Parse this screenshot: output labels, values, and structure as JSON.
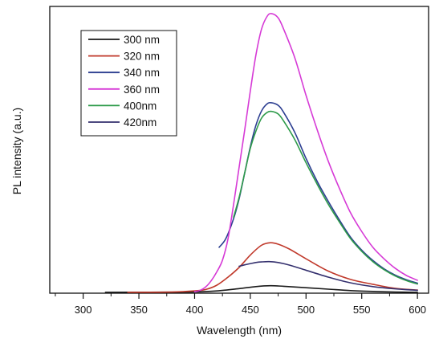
{
  "chart_data": {
    "type": "line",
    "xlabel": "Wavelength (nm)",
    "ylabel": "PL intensity (a.u.)",
    "xlim": [
      270,
      610
    ],
    "ylim": [
      0,
      100
    ],
    "xticks": [
      300,
      350,
      400,
      450,
      500,
      550,
      600
    ],
    "x_minor_ticks": [
      275,
      325,
      375,
      425,
      475,
      525,
      575
    ],
    "y_tick_labels": false,
    "grid": false,
    "legend_position": "top-left",
    "series": [
      {
        "name": "300 nm",
        "color": "#1a1a1a",
        "points": [
          [
            320,
            0.3
          ],
          [
            360,
            0.35
          ],
          [
            400,
            0.45
          ],
          [
            420,
            0.8
          ],
          [
            440,
            1.6
          ],
          [
            455,
            2.3
          ],
          [
            468,
            2.6
          ],
          [
            480,
            2.4
          ],
          [
            500,
            1.9
          ],
          [
            520,
            1.4
          ],
          [
            540,
            0.9
          ],
          [
            560,
            0.6
          ],
          [
            580,
            0.4
          ],
          [
            600,
            0.3
          ]
        ]
      },
      {
        "name": "320 nm",
        "color": "#c0392b",
        "points": [
          [
            340,
            0.3
          ],
          [
            380,
            0.4
          ],
          [
            400,
            0.8
          ],
          [
            410,
            1.3
          ],
          [
            420,
            2.8
          ],
          [
            430,
            5.6
          ],
          [
            440,
            9.0
          ],
          [
            450,
            13.3
          ],
          [
            460,
            16.7
          ],
          [
            468,
            17.6
          ],
          [
            475,
            17.1
          ],
          [
            485,
            15.4
          ],
          [
            500,
            12.0
          ],
          [
            520,
            7.7
          ],
          [
            540,
            4.8
          ],
          [
            560,
            3.1
          ],
          [
            580,
            1.7
          ],
          [
            600,
            1.1
          ]
        ]
      },
      {
        "name": "340 nm",
        "color": "#2c3e91",
        "points": [
          [
            422,
            16.0
          ],
          [
            428,
            19.0
          ],
          [
            435,
            26.0
          ],
          [
            440,
            33.0
          ],
          [
            445,
            42.0
          ],
          [
            450,
            51.0
          ],
          [
            455,
            58.5
          ],
          [
            460,
            63.5
          ],
          [
            465,
            66.0
          ],
          [
            469,
            66.4
          ],
          [
            475,
            65.5
          ],
          [
            480,
            63.0
          ],
          [
            490,
            56.0
          ],
          [
            500,
            47.0
          ],
          [
            510,
            39.0
          ],
          [
            520,
            32.0
          ],
          [
            530,
            25.5
          ],
          [
            540,
            19.5
          ],
          [
            550,
            15.0
          ],
          [
            560,
            11.4
          ],
          [
            570,
            8.5
          ],
          [
            580,
            6.3
          ],
          [
            590,
            4.7
          ],
          [
            600,
            3.5
          ]
        ]
      },
      {
        "name": "360 nm",
        "color": "#d63ad6",
        "points": [
          [
            400,
            0.5
          ],
          [
            405,
            1.0
          ],
          [
            410,
            2.2
          ],
          [
            415,
            4.4
          ],
          [
            420,
            7.5
          ],
          [
            425,
            11.5
          ],
          [
            430,
            19.0
          ],
          [
            435,
            31.0
          ],
          [
            440,
            44.0
          ],
          [
            445,
            57.0
          ],
          [
            450,
            70.5
          ],
          [
            455,
            83.0
          ],
          [
            460,
            92.0
          ],
          [
            465,
            96.5
          ],
          [
            469,
            97.5
          ],
          [
            475,
            96.0
          ],
          [
            480,
            92.0
          ],
          [
            490,
            82.0
          ],
          [
            500,
            69.0
          ],
          [
            510,
            57.0
          ],
          [
            520,
            46.0
          ],
          [
            530,
            36.5
          ],
          [
            540,
            28.0
          ],
          [
            550,
            21.5
          ],
          [
            560,
            16.0
          ],
          [
            570,
            12.0
          ],
          [
            580,
            8.7
          ],
          [
            590,
            6.2
          ],
          [
            600,
            4.5
          ]
        ]
      },
      {
        "name": "400nm",
        "color": "#2e9b4a",
        "points": [
          [
            435,
            26.5
          ],
          [
            440,
            33.5
          ],
          [
            445,
            42.0
          ],
          [
            450,
            50.5
          ],
          [
            455,
            56.5
          ],
          [
            460,
            61.0
          ],
          [
            465,
            63.0
          ],
          [
            469,
            63.4
          ],
          [
            475,
            62.5
          ],
          [
            480,
            60.0
          ],
          [
            490,
            53.5
          ],
          [
            500,
            45.5
          ],
          [
            510,
            38.0
          ],
          [
            520,
            31.0
          ],
          [
            530,
            24.8
          ],
          [
            540,
            19.0
          ],
          [
            550,
            14.6
          ],
          [
            560,
            11.0
          ],
          [
            570,
            8.2
          ],
          [
            580,
            6.0
          ],
          [
            590,
            4.4
          ],
          [
            600,
            3.2
          ]
        ]
      },
      {
        "name": "420nm",
        "color": "#34306e",
        "points": [
          [
            440,
            9.4
          ],
          [
            445,
            9.9
          ],
          [
            450,
            10.3
          ],
          [
            455,
            10.7
          ],
          [
            460,
            10.9
          ],
          [
            467,
            11.0
          ],
          [
            475,
            10.7
          ],
          [
            485,
            9.8
          ],
          [
            500,
            8.0
          ],
          [
            520,
            5.6
          ],
          [
            540,
            3.6
          ],
          [
            560,
            2.3
          ],
          [
            580,
            1.5
          ],
          [
            600,
            1.0
          ]
        ]
      }
    ]
  }
}
